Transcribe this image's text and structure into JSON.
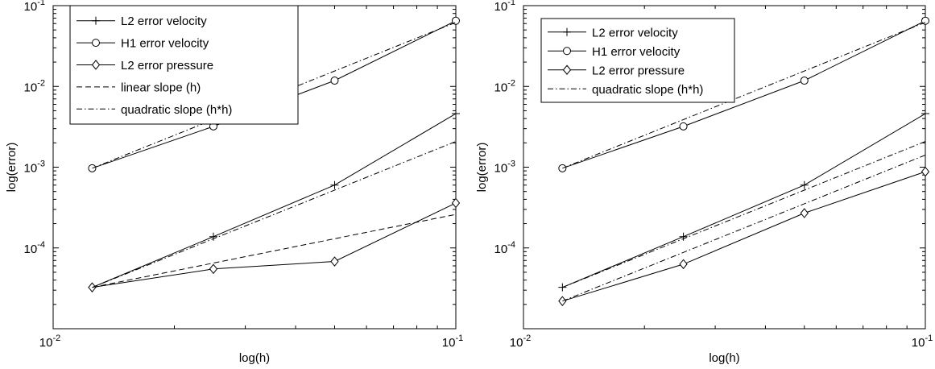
{
  "chart_data": [
    {
      "type": "line",
      "title": "",
      "xlabel": "log(h)",
      "ylabel": "log(error)",
      "xscale": "log",
      "yscale": "log",
      "xlim": [
        0.01,
        0.1
      ],
      "ylim": [
        1e-05,
        0.1
      ],
      "xticks": [
        {
          "value": 0.01,
          "base": "10",
          "exp": "-2"
        },
        {
          "value": 0.1,
          "base": "10",
          "exp": "-1"
        }
      ],
      "yticks": [
        {
          "value": 0.0001,
          "base": "10",
          "exp": "-4"
        },
        {
          "value": 0.001,
          "base": "10",
          "exp": "-3"
        },
        {
          "value": 0.01,
          "base": "10",
          "exp": "-2"
        },
        {
          "value": 0.1,
          "base": "10",
          "exp": "-1"
        }
      ],
      "grid": false,
      "legend_position": "top-left",
      "series": [
        {
          "name": "L2 error velocity",
          "style": "solid",
          "marker": "plus",
          "x": [
            0.0125,
            0.025,
            0.05,
            0.1
          ],
          "y": [
            3.25e-05,
            0.000138,
            0.0006,
            0.0046
          ]
        },
        {
          "name": "H1 error velocity",
          "style": "solid",
          "marker": "circle",
          "x": [
            0.0125,
            0.025,
            0.05,
            0.1
          ],
          "y": [
            0.00097,
            0.0032,
            0.0118,
            0.065
          ]
        },
        {
          "name": "L2 error pressure",
          "style": "solid",
          "marker": "diamond",
          "x": [
            0.0125,
            0.025,
            0.05,
            0.1
          ],
          "y": [
            3.25e-05,
            5.5e-05,
            6.8e-05,
            0.00036
          ]
        },
        {
          "name": "linear slope (h)",
          "style": "dashed",
          "marker": "none",
          "x": [
            0.0125,
            0.1
          ],
          "y": [
            3.25e-05,
            0.00026
          ]
        },
        {
          "name": "quadratic slope (h*h)",
          "style": "dashdot",
          "marker": "none",
          "x": [
            0.0125,
            0.1
          ],
          "y": [
            0.00097,
            0.062
          ]
        },
        {
          "name": "",
          "style": "dashdot",
          "marker": "none",
          "x": [
            0.0125,
            0.1
          ],
          "y": [
            3.25e-05,
            0.00208
          ]
        }
      ]
    },
    {
      "type": "line",
      "title": "",
      "xlabel": "log(h)",
      "ylabel": "log(error)",
      "xscale": "log",
      "yscale": "log",
      "xlim": [
        0.01,
        0.1
      ],
      "ylim": [
        1e-05,
        0.1
      ],
      "xticks": [
        {
          "value": 0.01,
          "base": "10",
          "exp": "-2"
        },
        {
          "value": 0.1,
          "base": "10",
          "exp": "-1"
        }
      ],
      "yticks": [
        {
          "value": 0.0001,
          "base": "10",
          "exp": "-4"
        },
        {
          "value": 0.001,
          "base": "10",
          "exp": "-3"
        },
        {
          "value": 0.01,
          "base": "10",
          "exp": "-2"
        },
        {
          "value": 0.1,
          "base": "10",
          "exp": "-1"
        }
      ],
      "grid": false,
      "legend_position": "top-left",
      "series": [
        {
          "name": "L2 error velocity",
          "style": "solid",
          "marker": "plus",
          "x": [
            0.0125,
            0.025,
            0.05,
            0.1
          ],
          "y": [
            3.25e-05,
            0.000138,
            0.0006,
            0.0046
          ]
        },
        {
          "name": "H1 error velocity",
          "style": "solid",
          "marker": "circle",
          "x": [
            0.0125,
            0.025,
            0.05,
            0.1
          ],
          "y": [
            0.00097,
            0.0032,
            0.0118,
            0.065
          ]
        },
        {
          "name": "L2 error pressure",
          "style": "solid",
          "marker": "diamond",
          "x": [
            0.0125,
            0.025,
            0.05,
            0.1
          ],
          "y": [
            2.2e-05,
            6.3e-05,
            0.00027,
            0.00088
          ]
        },
        {
          "name": "quadratic slope (h*h)",
          "style": "dashdot",
          "marker": "none",
          "x": [
            0.0125,
            0.1
          ],
          "y": [
            0.00097,
            0.062
          ]
        },
        {
          "name": "",
          "style": "dashdot",
          "marker": "none",
          "x": [
            0.0125,
            0.1
          ],
          "y": [
            3.25e-05,
            0.00208
          ]
        },
        {
          "name": "",
          "style": "dashdot",
          "marker": "none",
          "x": [
            0.0125,
            0.1
          ],
          "y": [
            2.2e-05,
            0.00141
          ]
        }
      ]
    }
  ]
}
